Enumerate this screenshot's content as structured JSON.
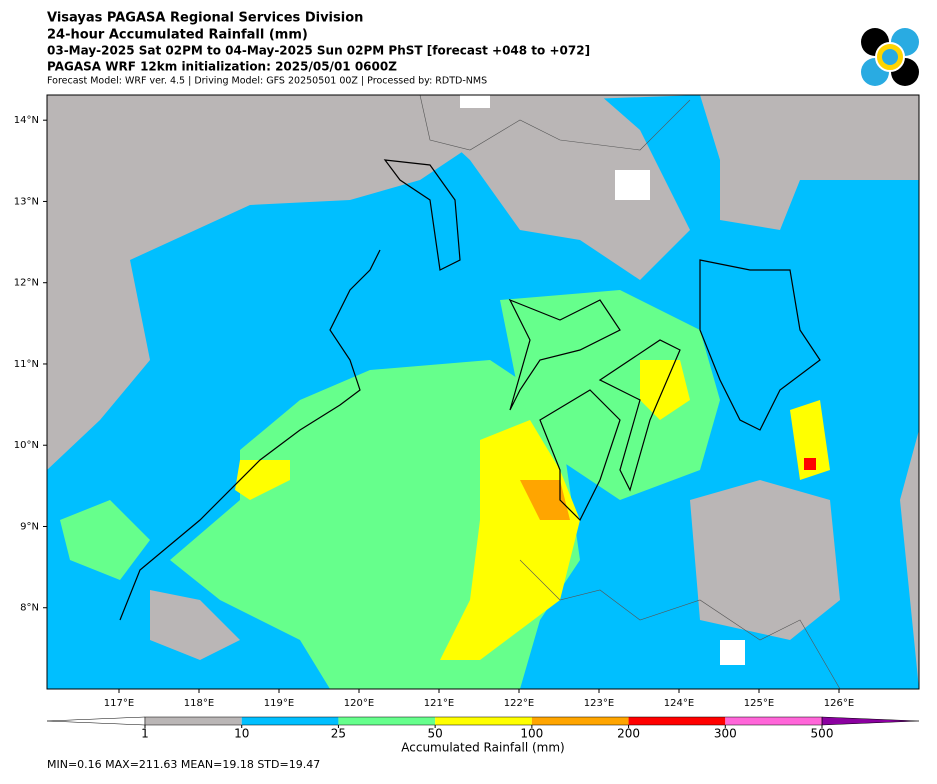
{
  "header": {
    "title": "Visayas PAGASA Regional Services Division",
    "subtitle": "24-hour Accumulated Rainfall (mm)",
    "period": "03-May-2025 Sat 02PM to 04-May-2025 Sun 02PM PhST [forecast +048 to +072]",
    "init": "PAGASA WRF 12km initialization: 2025/05/01 0600Z",
    "model": "Forecast Model: WRF ver. 4.5 | Driving Model: GFS 20250501 00Z | Processed by: RDTD-NMS"
  },
  "map": {
    "lonlim": [
      116.1,
      127.0
    ],
    "latlim": [
      7.0,
      14.31
    ],
    "lon_ticks": [
      {
        "value": 117,
        "label": "117°E"
      },
      {
        "value": 118,
        "label": "118°E"
      },
      {
        "value": 119,
        "label": "119°E"
      },
      {
        "value": 120,
        "label": "120°E"
      },
      {
        "value": 121,
        "label": "121°E"
      },
      {
        "value": 122,
        "label": "122°E"
      },
      {
        "value": 123,
        "label": "123°E"
      },
      {
        "value": 124,
        "label": "124°E"
      },
      {
        "value": 125,
        "label": "125°E"
      },
      {
        "value": 126,
        "label": "126°E"
      }
    ],
    "lat_ticks": [
      {
        "value": 8,
        "label": "8°N"
      },
      {
        "value": 9,
        "label": "9°N"
      },
      {
        "value": 10,
        "label": "10°N"
      },
      {
        "value": 11,
        "label": "11°N"
      },
      {
        "value": 12,
        "label": "12°N"
      },
      {
        "value": 13,
        "label": "13°N"
      },
      {
        "value": 14,
        "label": "14°N"
      }
    ]
  },
  "colorbar": {
    "label": "Accumulated Rainfall (mm)",
    "levels": [
      1,
      10,
      25,
      50,
      100,
      200,
      300,
      500
    ],
    "colors": [
      "#ffffff",
      "#bab6b6",
      "#00bfff",
      "#66ff8c",
      "#ffff00",
      "#ffa500",
      "#ff0000",
      "#ff66d9",
      "#8b00a0"
    ]
  },
  "stats": "MIN=0.16   MAX=211.63   MEAN=19.18   STD=19.47"
}
